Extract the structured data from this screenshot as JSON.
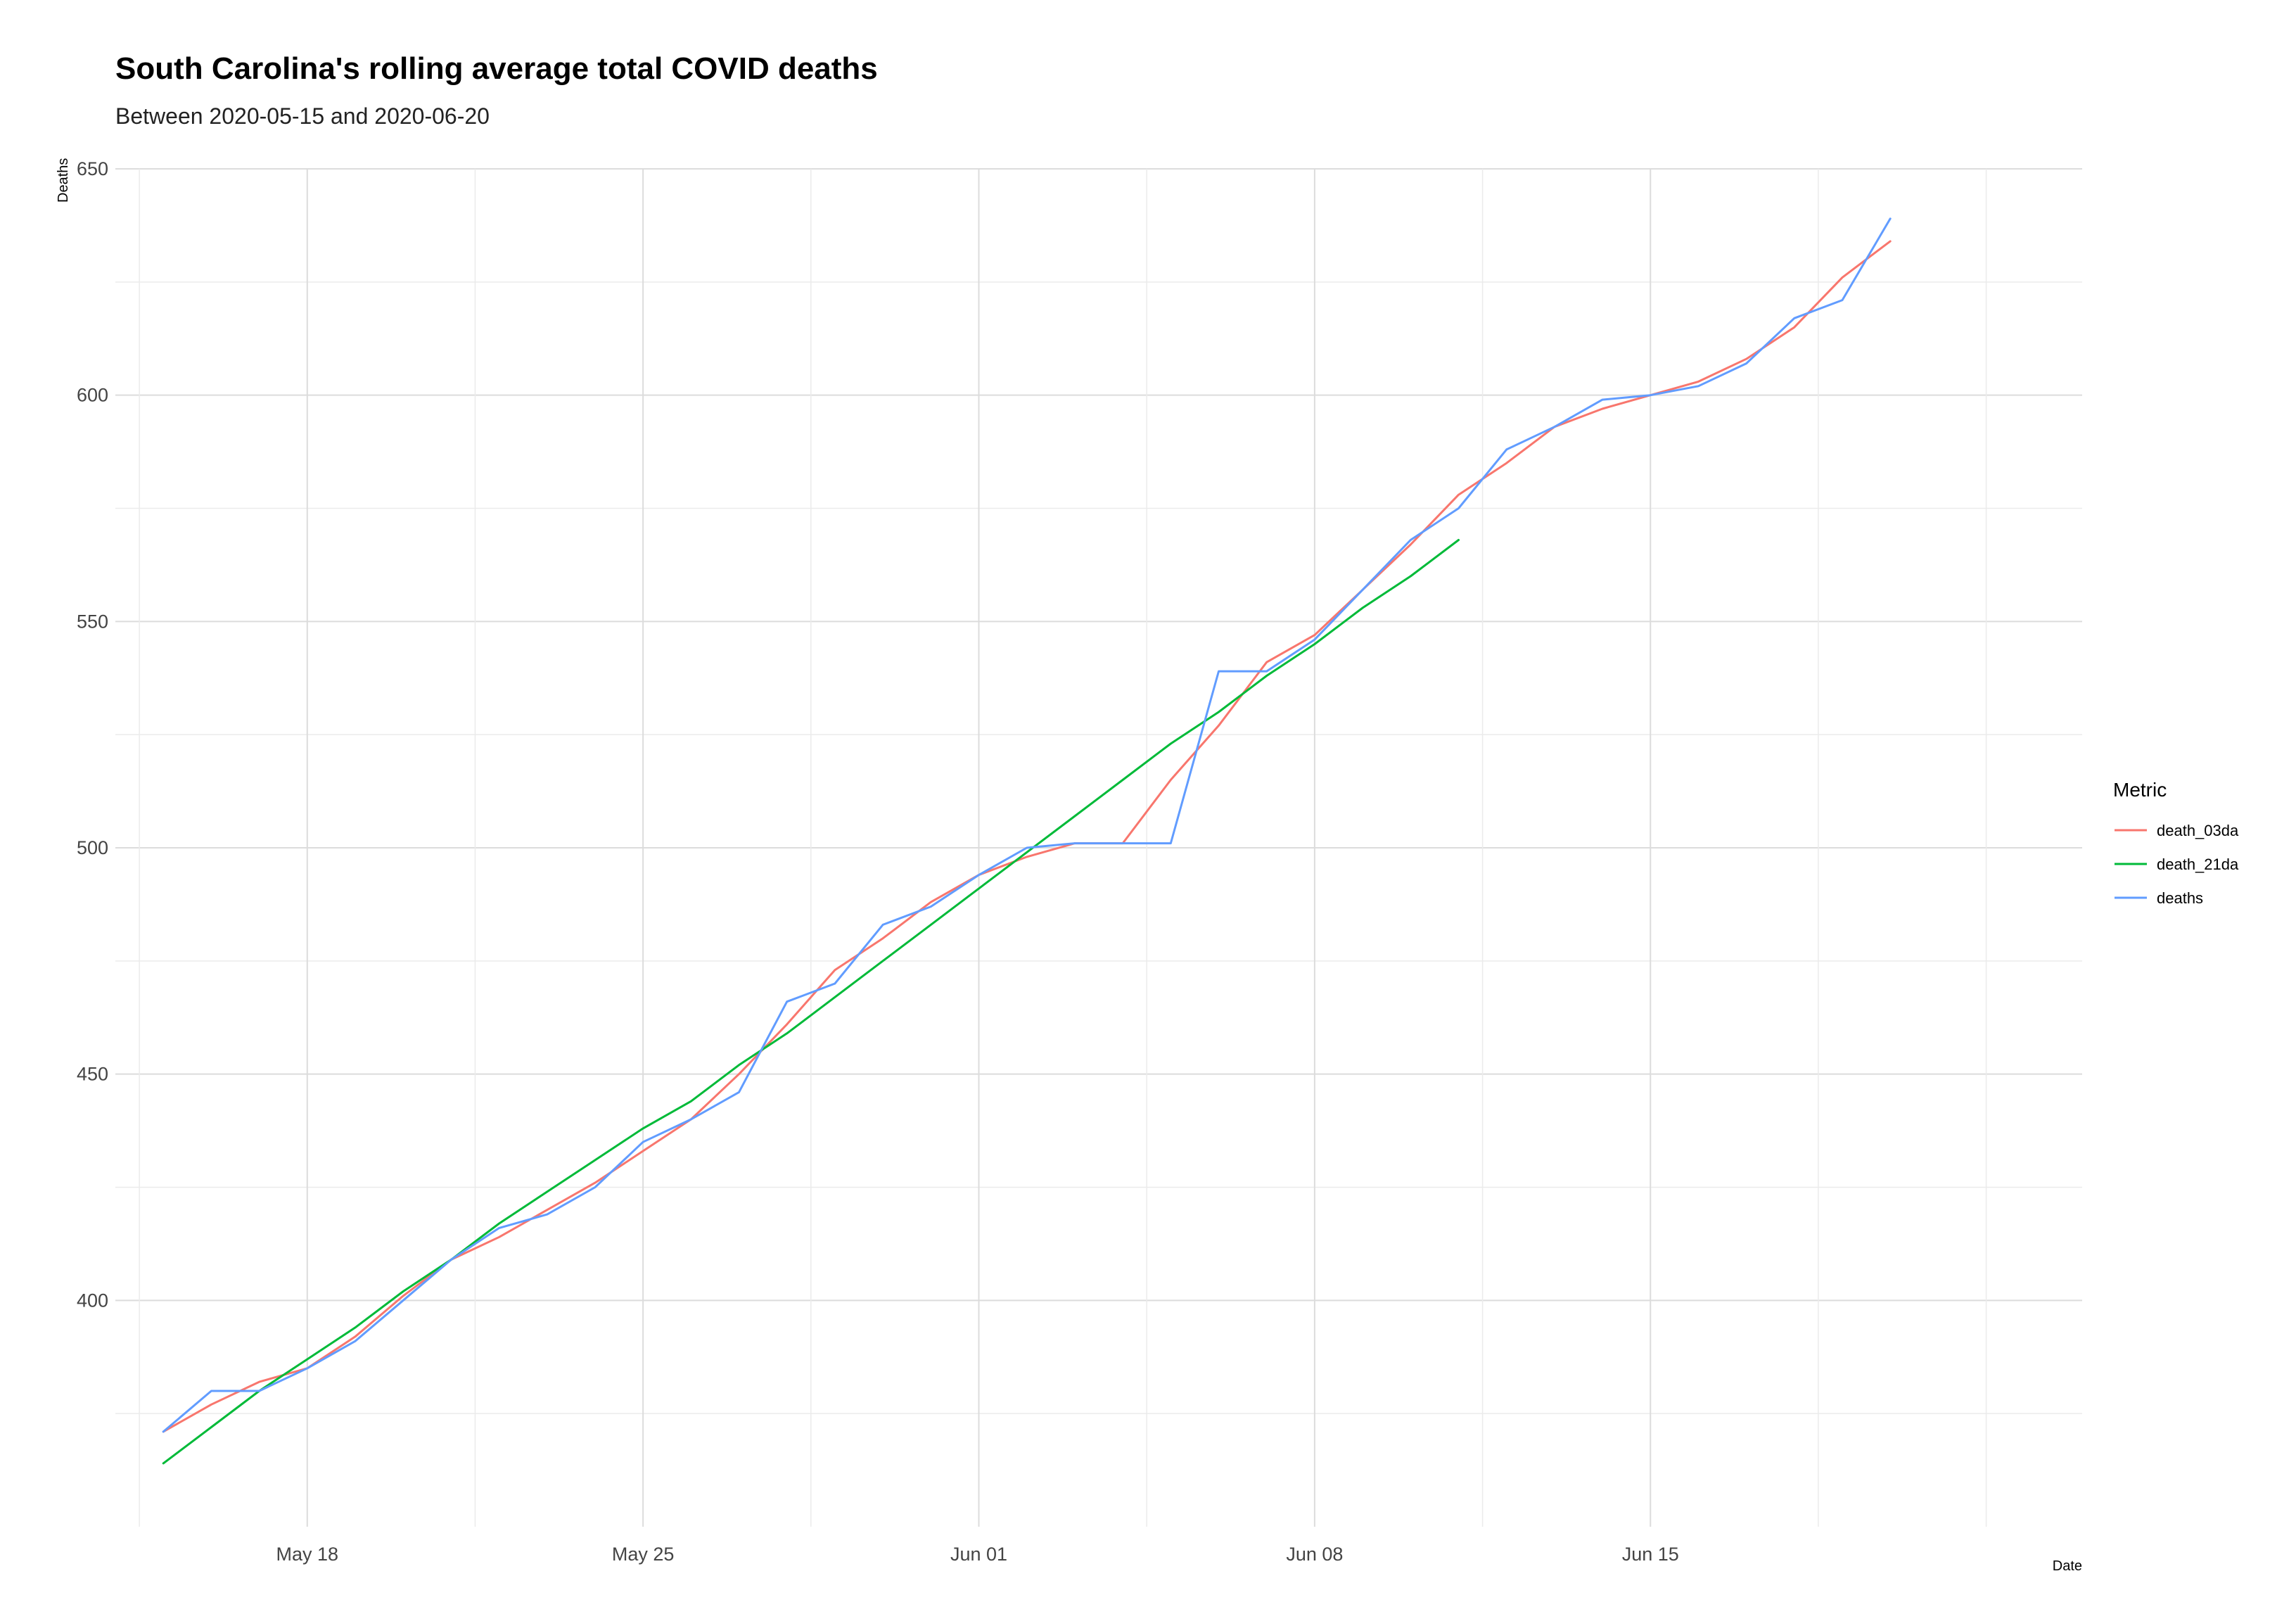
{
  "chart_data": {
    "type": "line",
    "title": "South Carolina's rolling average total COVID deaths",
    "subtitle": "Between 2020-05-15 and 2020-06-20",
    "xlabel": "Date",
    "ylabel": "Deaths",
    "x_type": "date",
    "xlim": [
      "2020-05-14",
      "2020-06-24"
    ],
    "ylim": [
      350,
      650
    ],
    "x_ticks": [
      {
        "date": "2020-05-18",
        "label": "May 18"
      },
      {
        "date": "2020-05-25",
        "label": "May 25"
      },
      {
        "date": "2020-06-01",
        "label": "Jun 01"
      },
      {
        "date": "2020-06-08",
        "label": "Jun 08"
      },
      {
        "date": "2020-06-15",
        "label": "Jun 15"
      }
    ],
    "y_ticks": [
      400,
      450,
      500,
      550,
      600,
      650
    ],
    "grid": true,
    "legend": {
      "title": "Metric",
      "position": "right"
    },
    "series": [
      {
        "name": "death_03da",
        "color": "#F8766D",
        "x": [
          "2020-05-15",
          "2020-05-16",
          "2020-05-17",
          "2020-05-18",
          "2020-05-19",
          "2020-05-20",
          "2020-05-21",
          "2020-05-22",
          "2020-05-23",
          "2020-05-24",
          "2020-05-25",
          "2020-05-26",
          "2020-05-27",
          "2020-05-28",
          "2020-05-29",
          "2020-05-30",
          "2020-05-31",
          "2020-06-01",
          "2020-06-02",
          "2020-06-03",
          "2020-06-04",
          "2020-06-05",
          "2020-06-06",
          "2020-06-07",
          "2020-06-08",
          "2020-06-09",
          "2020-06-10",
          "2020-06-11",
          "2020-06-12",
          "2020-06-13",
          "2020-06-14",
          "2020-06-15",
          "2020-06-16",
          "2020-06-17",
          "2020-06-18",
          "2020-06-19",
          "2020-06-20"
        ],
        "y": [
          371,
          377,
          382,
          385,
          392,
          401,
          409,
          414,
          420,
          426,
          433,
          440,
          450,
          461,
          473,
          480,
          488,
          494,
          498,
          501,
          501,
          515,
          527,
          541,
          547,
          557,
          567,
          578,
          585,
          593,
          597,
          600,
          603,
          608,
          615,
          626,
          634
        ]
      },
      {
        "name": "death_21da",
        "color": "#00BA38",
        "x": [
          "2020-05-15",
          "2020-05-16",
          "2020-05-17",
          "2020-05-18",
          "2020-05-19",
          "2020-05-20",
          "2020-05-21",
          "2020-05-22",
          "2020-05-23",
          "2020-05-24",
          "2020-05-25",
          "2020-05-26",
          "2020-05-27",
          "2020-05-28",
          "2020-05-29",
          "2020-05-30",
          "2020-05-31",
          "2020-06-01",
          "2020-06-02",
          "2020-06-03",
          "2020-06-04",
          "2020-06-05",
          "2020-06-06",
          "2020-06-07",
          "2020-06-08",
          "2020-06-09",
          "2020-06-10",
          "2020-06-11"
        ],
        "y": [
          364,
          372,
          380,
          387,
          394,
          402,
          409,
          417,
          424,
          431,
          438,
          444,
          452,
          459,
          467,
          475,
          483,
          491,
          499,
          507,
          515,
          523,
          530,
          538,
          545,
          553,
          560,
          568
        ]
      },
      {
        "name": "deaths",
        "color": "#619CFF",
        "x": [
          "2020-05-15",
          "2020-05-16",
          "2020-05-17",
          "2020-05-18",
          "2020-05-19",
          "2020-05-20",
          "2020-05-21",
          "2020-05-22",
          "2020-05-23",
          "2020-05-24",
          "2020-05-25",
          "2020-05-26",
          "2020-05-27",
          "2020-05-28",
          "2020-05-29",
          "2020-05-30",
          "2020-05-31",
          "2020-06-01",
          "2020-06-02",
          "2020-06-03",
          "2020-06-04",
          "2020-06-05",
          "2020-06-06",
          "2020-06-07",
          "2020-06-08",
          "2020-06-09",
          "2020-06-10",
          "2020-06-11",
          "2020-06-12",
          "2020-06-13",
          "2020-06-14",
          "2020-06-15",
          "2020-06-16",
          "2020-06-17",
          "2020-06-18",
          "2020-06-19",
          "2020-06-20"
        ],
        "y": [
          371,
          380,
          380,
          385,
          391,
          400,
          409,
          416,
          419,
          425,
          435,
          440,
          446,
          466,
          470,
          483,
          487,
          494,
          500,
          501,
          501,
          501,
          539,
          539,
          546,
          557,
          568,
          575,
          588,
          593,
          599,
          600,
          602,
          607,
          617,
          621,
          639
        ]
      }
    ]
  }
}
